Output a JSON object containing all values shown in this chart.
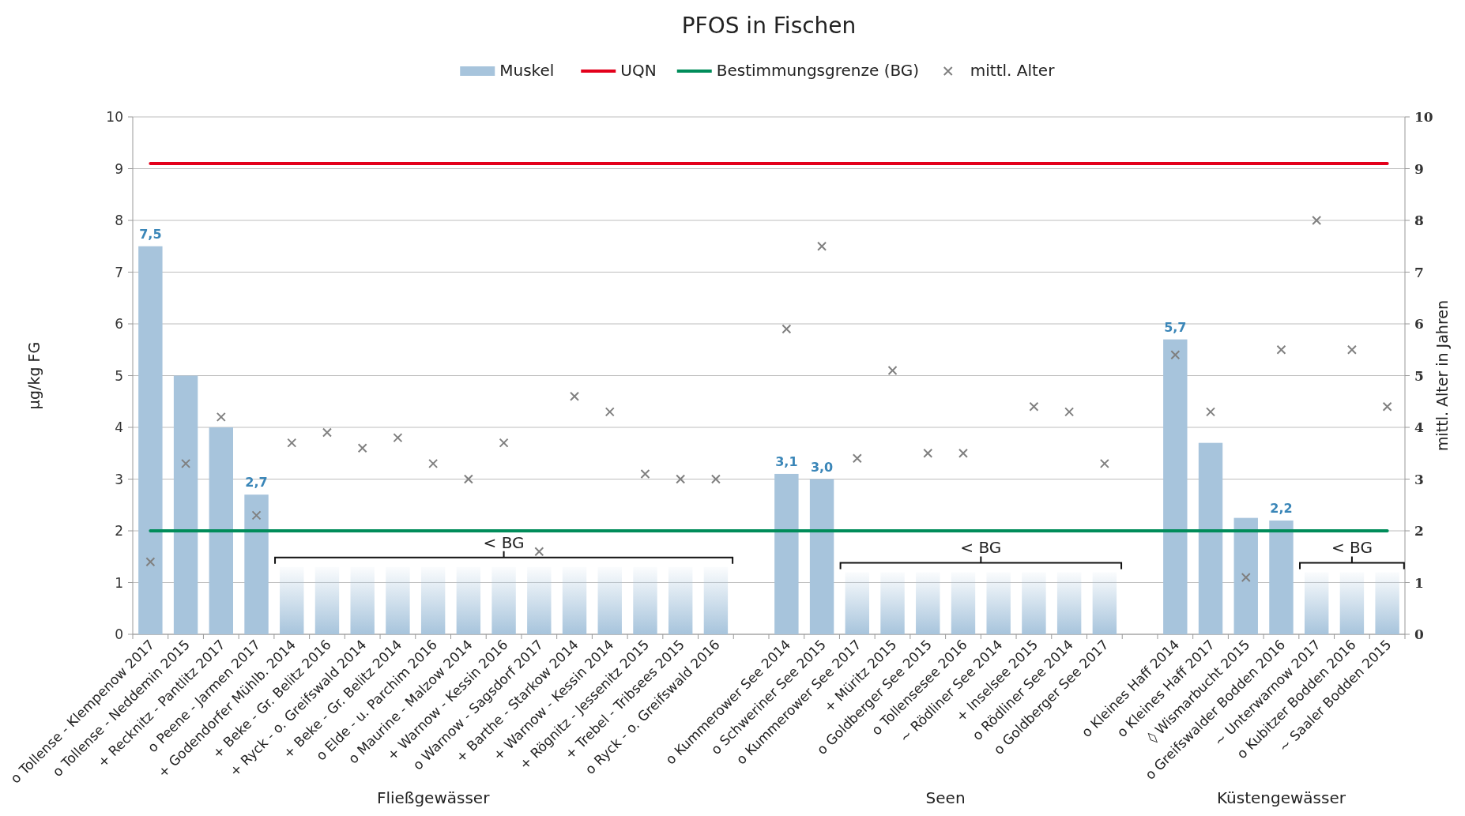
{
  "chart_data": {
    "type": "bar",
    "title": "PFOS in Fischen",
    "ylabel": "µg/kg FG",
    "y2label": "mittl. Alter in Jahren",
    "categories": [
      "o Tollense - Klempenow 2017",
      "o Tollense - Neddemin 2015",
      "+ Recknitz - Pantlitz 2017",
      "o Peene - Jarmen 2017",
      "+ Godendorfer Mühlb. 2014",
      "+ Beke - Gr. Belitz 2016",
      "+ Ryck - o. Greifswald 2014",
      "+ Beke - Gr. Belitz 2014",
      "o Elde - u. Parchim 2016",
      "o Maurine - Malzow 2014",
      "+ Warnow - Kessin 2016",
      "o Warnow - Sagsdorf 2017",
      "+ Barthe - Starkow 2014",
      "+ Warnow - Kessin 2014",
      "+ Rögnitz - Jessenitz 2015",
      "+ Trebel - Tribsees 2015",
      "o Ryck - o. Greifswald 2016",
      null,
      "o Kummerower See 2014",
      "o Schweriner See 2015",
      "o Kummerower See 2017",
      "+ Müritz 2015",
      "o Goldberger See 2015",
      "o Tollensesee 2016",
      "~ Rödliner See 2014",
      "+ Inselsee 2015",
      "o Rödliner See 2014",
      "o Goldberger See 2017",
      null,
      "o Kleines Haff 2014",
      "o Kleines Haff 2017",
      "◊ Wismarbucht 2015",
      "o Greifswalder Bodden 2016",
      "~ Unterwarnow 2017",
      "o Kubitzer Bodden 2016",
      "~ Saaler Bodden 2015"
    ],
    "series": [
      {
        "name": "Muskel",
        "color": "#a7c4dc",
        "values": [
          7.5,
          5.0,
          4.0,
          2.7,
          null,
          null,
          null,
          null,
          null,
          null,
          null,
          null,
          null,
          null,
          null,
          null,
          null,
          null,
          3.1,
          3.0,
          null,
          null,
          null,
          null,
          null,
          null,
          null,
          null,
          null,
          5.7,
          3.7,
          2.25,
          2.2,
          null,
          null,
          null
        ],
        "value_labels": [
          "7,5",
          null,
          null,
          "2,7",
          null,
          null,
          null,
          null,
          null,
          null,
          null,
          null,
          null,
          null,
          null,
          null,
          null,
          null,
          "3,1",
          "3,0",
          null,
          null,
          null,
          null,
          null,
          null,
          null,
          null,
          null,
          "5,7",
          null,
          null,
          "2,2",
          null,
          null,
          null
        ]
      },
      {
        "color": "#a7c4dc",
        "values": [
          null,
          null,
          null,
          null,
          1.3,
          1.3,
          1.3,
          1.3,
          1.3,
          1.3,
          1.3,
          1.3,
          1.3,
          1.3,
          1.3,
          1.3,
          1.3,
          null,
          null,
          null,
          1.2,
          1.2,
          1.2,
          1.2,
          1.2,
          1.2,
          1.2,
          1.2,
          null,
          null,
          null,
          null,
          null,
          1.2,
          1.2,
          1.2
        ]
      },
      {
        "name": "mittl. Alter",
        "type": "scatter",
        "axis": "y2",
        "color": "#808080",
        "marker": "cross",
        "values": [
          1.4,
          3.3,
          4.2,
          2.3,
          3.7,
          3.9,
          3.6,
          3.8,
          3.3,
          3.0,
          3.7,
          1.6,
          4.6,
          4.3,
          3.1,
          3.0,
          3.0,
          null,
          5.9,
          7.5,
          3.4,
          5.1,
          3.5,
          3.5,
          null,
          4.4,
          4.3,
          3.3,
          null,
          5.4,
          4.3,
          1.1,
          5.5,
          8.0,
          5.5,
          4.4
        ]
      }
    ],
    "ylim": [
      0,
      10
    ],
    "yticks": [
      0,
      1,
      2,
      3,
      4,
      5,
      6,
      7,
      8,
      9,
      10
    ],
    "y2lim": [
      0,
      10
    ],
    "y2ticks": [
      0,
      1,
      2,
      3,
      4,
      5,
      6,
      7,
      8,
      9,
      10
    ],
    "ref_lines": [
      {
        "axis": "y",
        "value": 9.1,
        "label": "UQN",
        "color": "#e3001b"
      },
      {
        "axis": "y",
        "value": 2,
        "label": "Bestimmungsgrenze (BG)",
        "color": "#008c5a"
      }
    ],
    "annotations": [
      "< BG",
      "< BG",
      "< BG",
      "Fließgewässer",
      "Seen",
      "Küstengewässer"
    ],
    "grid": "y",
    "legend": "top"
  }
}
